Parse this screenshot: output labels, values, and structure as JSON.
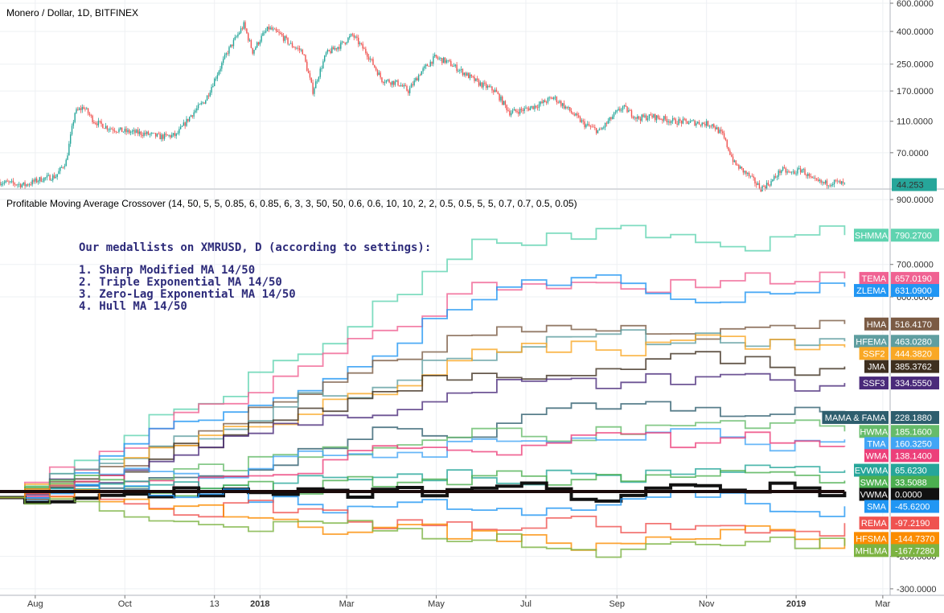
{
  "chart_data": [
    {
      "type": "candlestick",
      "title": "Monero / Dollar, 1D, BITFINEX",
      "y_scale": "log",
      "ylim": [
        44,
        600
      ],
      "y_ticks": [
        "600.0000",
        "400.0000",
        "250.0000",
        "170.0000",
        "110.0000",
        "70.0000"
      ],
      "y_tick_values": [
        600,
        400,
        250,
        170,
        110,
        70
      ],
      "x_range": [
        "2017-07-08",
        "2019-03-06"
      ],
      "x_ticks": [
        "Aug",
        "Oct",
        "13",
        "2018",
        "Mar",
        "May",
        "Jul",
        "Sep",
        "Nov",
        "2019",
        "Mar"
      ],
      "x_tick_dates": [
        "2017-08-01",
        "2017-10-01",
        "2017-12-01",
        "2018-01-01",
        "2018-03-01",
        "2018-05-01",
        "2018-07-01",
        "2018-09-01",
        "2018-11-01",
        "2019-01-01",
        "2019-03-01"
      ],
      "bold_x_ticks": [
        "2018",
        "2019"
      ],
      "last_price": "44.253",
      "up_color": "#26a69a",
      "down_color": "#ef5350",
      "price_path": [
        [
          "2017-07-08",
          46
        ],
        [
          "2017-07-25",
          44
        ],
        [
          "2017-08-05",
          48
        ],
        [
          "2017-08-15",
          50
        ],
        [
          "2017-08-22",
          62
        ],
        [
          "2017-08-28",
          125
        ],
        [
          "2017-09-03",
          135
        ],
        [
          "2017-09-10",
          110
        ],
        [
          "2017-09-20",
          100
        ],
        [
          "2017-10-01",
          95
        ],
        [
          "2017-10-15",
          92
        ],
        [
          "2017-10-25",
          88
        ],
        [
          "2017-11-05",
          90
        ],
        [
          "2017-11-15",
          120
        ],
        [
          "2017-11-25",
          150
        ],
        [
          "2017-12-01",
          200
        ],
        [
          "2017-12-10",
          300
        ],
        [
          "2017-12-21",
          440
        ],
        [
          "2017-12-27",
          300
        ],
        [
          "2018-01-03",
          380
        ],
        [
          "2018-01-07",
          420
        ],
        [
          "2018-01-15",
          380
        ],
        [
          "2018-01-22",
          330
        ],
        [
          "2018-01-30",
          300
        ],
        [
          "2018-02-06",
          170
        ],
        [
          "2018-02-15",
          290
        ],
        [
          "2018-02-25",
          330
        ],
        [
          "2018-03-05",
          380
        ],
        [
          "2018-03-15",
          290
        ],
        [
          "2018-03-25",
          200
        ],
        [
          "2018-04-05",
          190
        ],
        [
          "2018-04-12",
          170
        ],
        [
          "2018-04-20",
          220
        ],
        [
          "2018-04-30",
          275
        ],
        [
          "2018-05-08",
          260
        ],
        [
          "2018-05-20",
          220
        ],
        [
          "2018-05-30",
          190
        ],
        [
          "2018-06-10",
          170
        ],
        [
          "2018-06-20",
          125
        ],
        [
          "2018-06-30",
          130
        ],
        [
          "2018-07-10",
          140
        ],
        [
          "2018-07-20",
          155
        ],
        [
          "2018-07-30",
          130
        ],
        [
          "2018-08-10",
          105
        ],
        [
          "2018-08-20",
          95
        ],
        [
          "2018-08-30",
          120
        ],
        [
          "2018-09-05",
          135
        ],
        [
          "2018-09-15",
          115
        ],
        [
          "2018-09-25",
          118
        ],
        [
          "2018-10-10",
          110
        ],
        [
          "2018-10-25",
          108
        ],
        [
          "2018-11-05",
          105
        ],
        [
          "2018-11-12",
          90
        ],
        [
          "2018-11-20",
          60
        ],
        [
          "2018-11-30",
          50
        ],
        [
          "2018-12-08",
          42
        ],
        [
          "2018-12-15",
          46
        ],
        [
          "2018-12-22",
          55
        ],
        [
          "2018-12-28",
          52
        ],
        [
          "2019-01-05",
          55
        ],
        [
          "2019-01-12",
          47
        ],
        [
          "2019-01-20",
          45
        ],
        [
          "2019-01-28",
          46
        ],
        [
          "2019-02-03",
          44.253
        ]
      ]
    },
    {
      "type": "line",
      "title": "Profitable Moving Average Crossover (14, 50, 5, 5, 0.85, 6, 0.85, 6, 3, 3, 50, 50, 0.6, 0.6, 10, 10, 2, 2, 0.5, 0.5, 5, 5, 0.7, 0.7, 0.5, 0.05)",
      "ylim": [
        -320,
        930
      ],
      "y_ticks": [
        "900.0000",
        "700.0000",
        "600.0000",
        "-200.0000",
        "-300.0000"
      ],
      "y_tick_values": [
        900,
        700,
        600,
        -200,
        -300
      ],
      "zero_line_color": "#1a0a0a",
      "annotation": [
        "Our medallists on XMRUSD, D (according to settings):",
        "",
        "1. Sharp Modified MA 14/50",
        "2. Triple Exponential MA 14/50",
        "3. Zero-Lag Exponential MA 14/50",
        "4. Hull MA 14/50"
      ],
      "series": [
        {
          "name": "SHMMA",
          "value": "790.2700",
          "color": "#5fd3b0"
        },
        {
          "name": "TEMA",
          "value": "657.0190",
          "color": "#f06292"
        },
        {
          "name": "ZLEMA",
          "value": "631.0900",
          "color": "#2196f3"
        },
        {
          "name": "HMA",
          "value": "516.4170",
          "color": "#7b5b44"
        },
        {
          "name": "HFEMA",
          "value": "463.0280",
          "color": "#5f9ea0"
        },
        {
          "name": "SSF2",
          "value": "444.3820",
          "color": "#f9a825"
        },
        {
          "name": "JMA",
          "value": "385.3762",
          "color": "#3e2f1f"
        },
        {
          "name": "SSF3",
          "value": "334.5550",
          "color": "#4a2a7a"
        },
        {
          "name": "MAMA & FAMA",
          "value": "228.1880",
          "color": "#2e5e6e"
        },
        {
          "name": "HWMA",
          "value": "185.1600",
          "color": "#66bb6a"
        },
        {
          "name": "TMA",
          "value": "160.3250",
          "color": "#42a5f5"
        },
        {
          "name": "WMA",
          "value": "138.1400",
          "color": "#ec407a"
        },
        {
          "name": "EVWMA",
          "value": "65.6230",
          "color": "#26a69a"
        },
        {
          "name": "SWMA",
          "value": "33.5088",
          "color": "#4caf50"
        },
        {
          "name": "VWMA",
          "value": "0.0000",
          "color": "#111111"
        },
        {
          "name": "SMA",
          "value": "-45.6200",
          "color": "#2196f3"
        },
        {
          "name": "REMA",
          "value": "-97.2190",
          "color": "#ef5350"
        },
        {
          "name": "HFSMA",
          "value": "-144.7370",
          "color": "#fb8c00"
        },
        {
          "name": "MHLMA",
          "value": "-167.7280",
          "color": "#7cb342"
        }
      ]
    }
  ]
}
